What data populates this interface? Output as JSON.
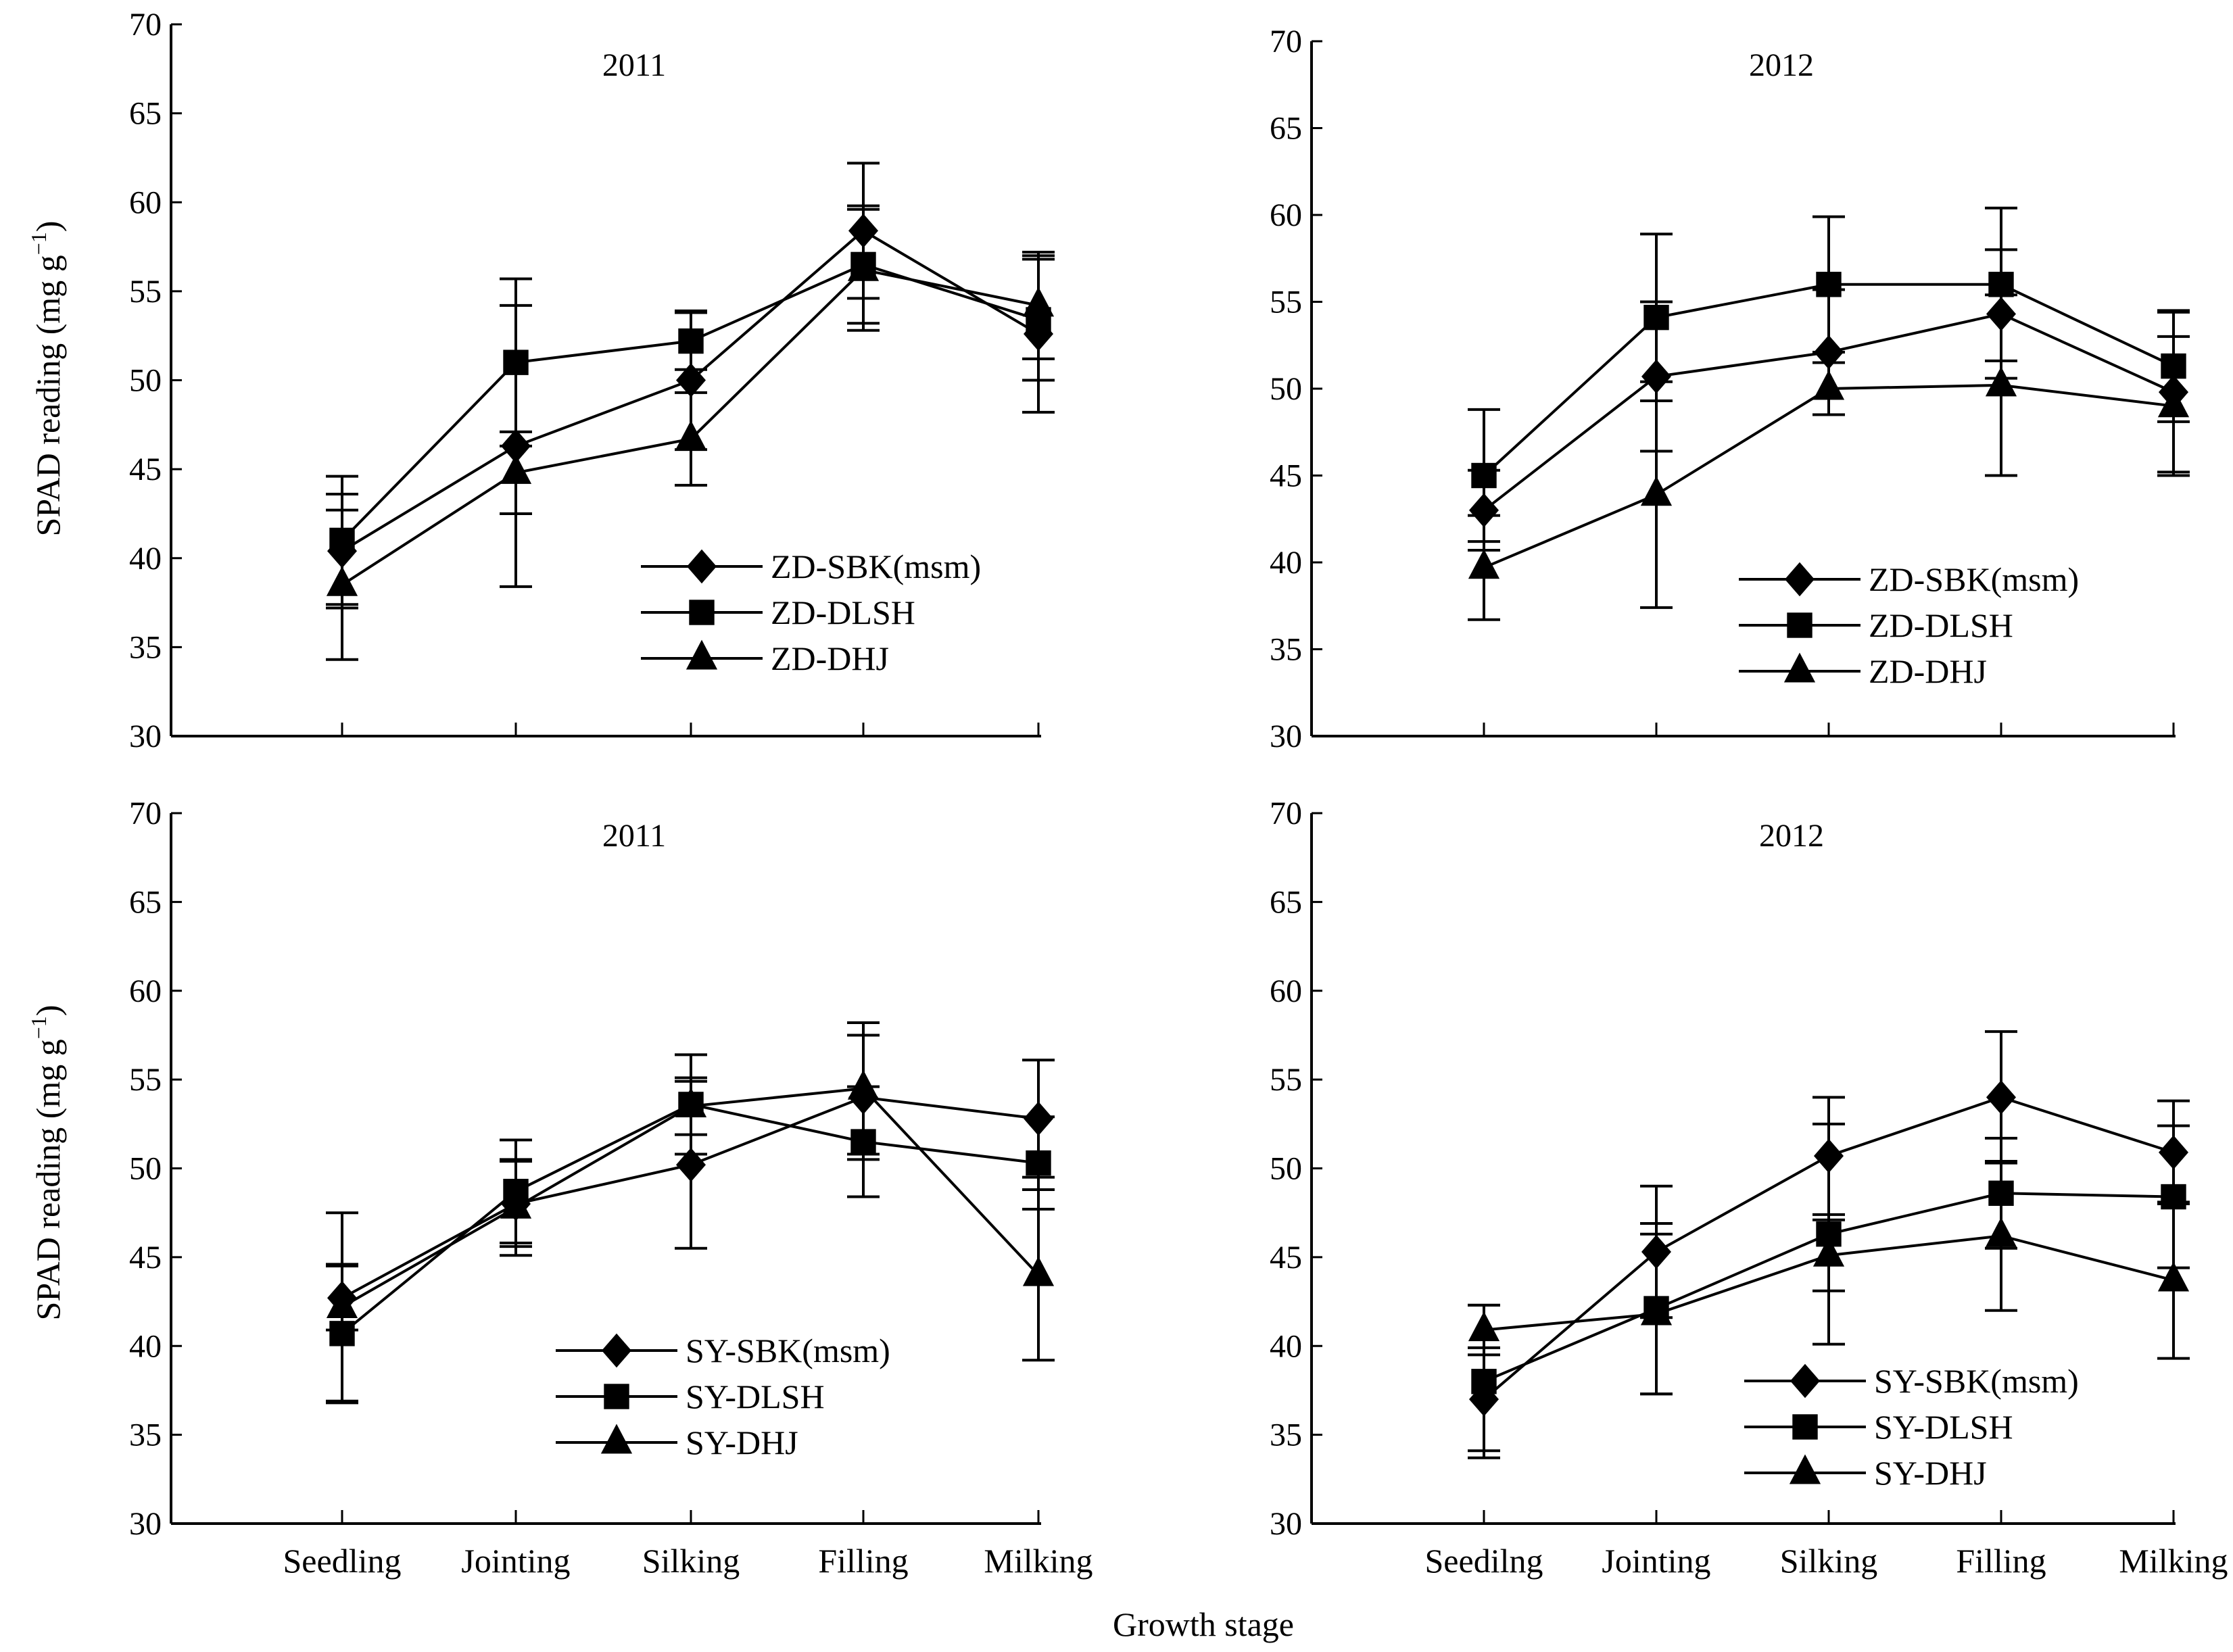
{
  "chart_data": [
    {
      "type": "line",
      "panel": "top-left",
      "title": "2011",
      "xlabel": "",
      "ylabel": "SPAD reading (mg g⁻¹)",
      "ylim": [
        30,
        70
      ],
      "yticks": [
        30,
        35,
        40,
        45,
        50,
        55,
        60,
        65,
        70
      ],
      "categories": [
        "Seedling",
        "Jointing",
        "Silking",
        "Filling",
        "Milking"
      ],
      "show_category_labels": false,
      "grid": false,
      "legend_position": "bottom-right",
      "series": [
        {
          "name": "ZD-SBK(msm)",
          "marker": "diamond",
          "values": [
            40.4,
            46.3,
            50.0,
            58.4,
            52.6
          ],
          "error": [
            3.2,
            7.9,
            3.9,
            3.8,
            4.4
          ]
        },
        {
          "name": "ZD-DLSH",
          "marker": "square",
          "values": [
            41.0,
            51.0,
            52.2,
            56.5,
            53.4
          ],
          "error": [
            3.6,
            4.7,
            1.6,
            3.3,
            3.4
          ]
        },
        {
          "name": "ZD-DHJ",
          "marker": "triangle",
          "values": [
            38.5,
            44.8,
            46.7,
            56.2,
            54.2
          ],
          "error": [
            4.2,
            2.3,
            2.6,
            3.4,
            3.0
          ]
        }
      ]
    },
    {
      "type": "line",
      "panel": "top-right",
      "title": "2012",
      "xlabel": "",
      "ylabel": "",
      "ylim": [
        30,
        70
      ],
      "yticks": [
        30,
        35,
        40,
        45,
        50,
        55,
        60,
        65,
        70
      ],
      "categories": [
        "Seedling",
        "Jointing",
        "Silking",
        "Filling",
        "Milking"
      ],
      "show_category_labels": false,
      "grid": false,
      "legend_position": "bottom-right",
      "series": [
        {
          "name": "ZD-SBK(msm)",
          "marker": "diamond",
          "values": [
            43.0,
            50.7,
            52.1,
            54.3,
            49.8
          ],
          "error": [
            2.3,
            4.3,
            3.6,
            3.7,
            4.6
          ]
        },
        {
          "name": "ZD-DLSH",
          "marker": "square",
          "values": [
            45.0,
            54.1,
            56.0,
            56.0,
            51.3
          ],
          "error": [
            3.8,
            4.8,
            3.9,
            4.4,
            3.2
          ]
        },
        {
          "name": "ZD-DHJ",
          "marker": "triangle",
          "values": [
            39.7,
            43.9,
            50.0,
            50.2,
            49.0
          ],
          "error": [
            3.0,
            6.5,
            1.5,
            5.2,
            4.0
          ]
        }
      ]
    },
    {
      "type": "line",
      "panel": "bottom-left",
      "title": "2011",
      "xlabel": "",
      "ylabel": "SPAD reading (mg g⁻¹)",
      "ylim": [
        30,
        70
      ],
      "yticks": [
        30,
        35,
        40,
        45,
        50,
        55,
        60,
        65,
        70
      ],
      "categories": [
        "Seedling",
        "Jointing",
        "Silking",
        "Filling",
        "Milking"
      ],
      "show_category_labels": true,
      "grid": false,
      "legend_position": "bottom-right",
      "series": [
        {
          "name": "SY-SBK(msm)",
          "marker": "diamond",
          "values": [
            42.7,
            48.0,
            50.2,
            54.0,
            52.8
          ],
          "error": [
            1.8,
            2.4,
            4.7,
            3.5,
            3.3
          ]
        },
        {
          "name": "SY-DLSH",
          "marker": "square",
          "values": [
            40.7,
            48.7,
            53.6,
            51.5,
            50.3
          ],
          "error": [
            3.9,
            2.9,
            2.8,
            3.1,
            2.6
          ]
        },
        {
          "name": "SY-DHJ",
          "marker": "triangle",
          "values": [
            42.2,
            47.8,
            53.5,
            54.5,
            44.0
          ],
          "error": [
            5.3,
            2.7,
            1.6,
            3.7,
            4.8
          ]
        }
      ]
    },
    {
      "type": "line",
      "panel": "bottom-right",
      "title": "2012",
      "xlabel": "",
      "ylabel": "",
      "ylim": [
        30,
        70
      ],
      "yticks": [
        30,
        35,
        40,
        45,
        50,
        55,
        60,
        65,
        70
      ],
      "categories": [
        "Seedilng",
        "Jointing",
        "Silking",
        "Filling",
        "Milking"
      ],
      "show_category_labels": true,
      "grid": false,
      "legend_position": "bottom-right",
      "series": [
        {
          "name": "SY-SBK(msm)",
          "marker": "diamond",
          "values": [
            37.0,
            45.3,
            50.7,
            54.0,
            50.9
          ],
          "error": [
            2.9,
            3.7,
            3.3,
            3.7,
            2.9
          ]
        },
        {
          "name": "SY-DLSH",
          "marker": "square",
          "values": [
            38.0,
            42.1,
            46.3,
            48.6,
            48.4
          ],
          "error": [
            4.3,
            4.8,
            6.2,
            3.1,
            4.0
          ]
        },
        {
          "name": "SY-DHJ",
          "marker": "triangle",
          "values": [
            40.9,
            41.8,
            45.1,
            46.2,
            43.7
          ],
          "error": [
            1.4,
            4.5,
            2.0,
            4.2,
            4.4
          ]
        }
      ]
    }
  ],
  "figure": {
    "shared_xlabel": "Growth stage",
    "ylabel_main": "SPAD reading (mg g",
    "ylabel_sup": "−1",
    "ylabel_close": ")"
  }
}
